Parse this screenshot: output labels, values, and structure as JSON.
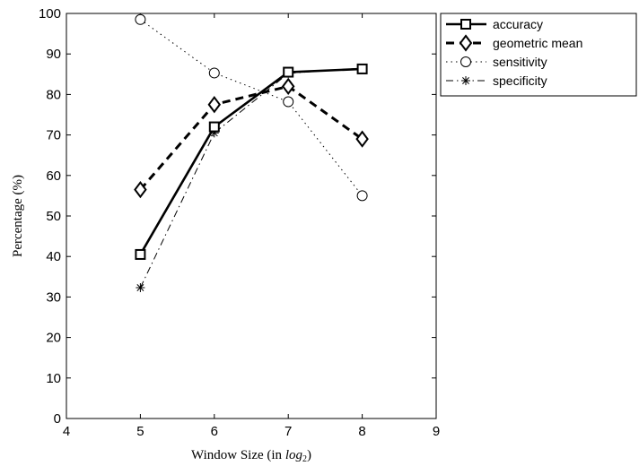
{
  "chart_data": {
    "type": "line",
    "xlabel_prefix": "Window Size (in ",
    "xlabel_math": "log",
    "xlabel_sub": "2",
    "xlabel_suffix": ")",
    "ylabel": "Percentage (%)",
    "xlim": [
      4,
      9
    ],
    "ylim": [
      0,
      100
    ],
    "x_ticks": [
      "4",
      "5",
      "6",
      "7",
      "8",
      "9"
    ],
    "y_ticks": [
      "0",
      "10",
      "20",
      "30",
      "40",
      "50",
      "60",
      "70",
      "80",
      "90",
      "100"
    ],
    "grid": false,
    "legend_position": "outside top-right",
    "x": [
      5,
      6,
      7,
      8
    ],
    "series": [
      {
        "name": "accuracy",
        "values": [
          40.5,
          72.0,
          85.5,
          86.3
        ],
        "color": "#000000",
        "line": "solid",
        "marker": "square"
      },
      {
        "name": "geometric mean",
        "values": [
          56.5,
          77.5,
          82.0,
          69.0
        ],
        "color": "#000000",
        "line": "dashed",
        "marker": "diamond"
      },
      {
        "name": "sensitivity",
        "values": [
          98.5,
          85.3,
          78.2,
          55.0
        ],
        "color": "#000000",
        "line": "dotted",
        "marker": "circle"
      },
      {
        "name": "specificity",
        "values": [
          32.3,
          70.5,
          85.2,
          86.5
        ],
        "color": "#000000",
        "line": "dashdot",
        "marker": "asterisk"
      }
    ]
  }
}
